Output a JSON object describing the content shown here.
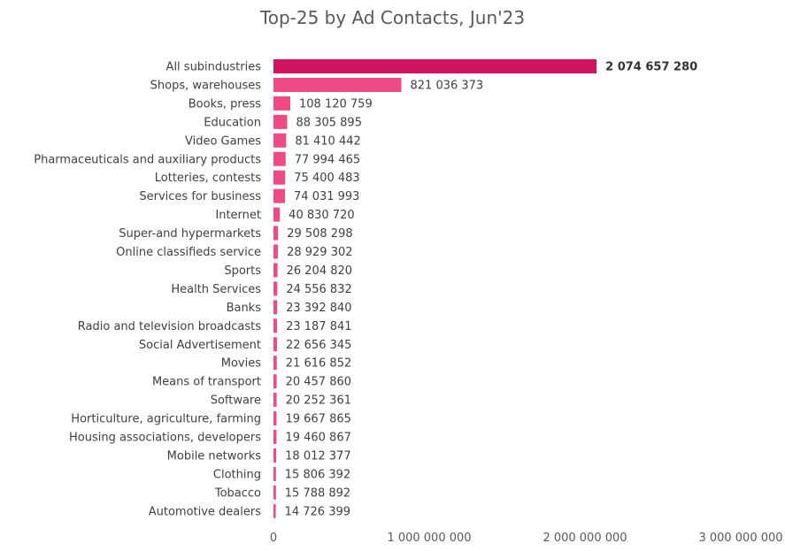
{
  "chart_data": {
    "type": "bar",
    "orientation": "horizontal",
    "title": "Top-25 by Ad Contacts, Jun'23",
    "xlim": [
      0,
      3000000000
    ],
    "x_ticks": [
      0,
      1000000000,
      2000000000,
      3000000000
    ],
    "x_tick_labels": [
      "0",
      "1 000 000 000",
      "2 000 000 000",
      "3 000 000 000"
    ],
    "grid": false,
    "colors": {
      "total": "#d0135f",
      "bar": "#ee4a86"
    },
    "categories": [
      "All subindustries",
      "Shops, warehouses",
      "Books, press",
      "Education",
      "Video Games",
      "Pharmaceuticals and auxiliary products",
      "Lotteries, contests",
      "Services for business",
      "Internet",
      "Super-and hypermarkets",
      "Online classifieds service",
      "Sports",
      "Health Services",
      "Banks",
      "Radio and television broadcasts",
      "Social Advertisement",
      "Movies",
      "Means of transport",
      "Software",
      "Horticulture, agriculture, farming",
      "Housing associations, developers",
      "Mobile networks",
      "Clothing",
      "Tobacco",
      "Automotive dealers"
    ],
    "values": [
      2074657280,
      821036373,
      108120759,
      88305895,
      81410442,
      77994465,
      75400483,
      74031993,
      40830720,
      29508298,
      28929302,
      26204820,
      24556832,
      23392840,
      23187841,
      22656345,
      21616852,
      20457860,
      20252361,
      19667865,
      19460867,
      18012377,
      15806392,
      15788892,
      14726399
    ],
    "value_labels": [
      "2 074 657 280",
      "821 036 373",
      "108 120 759",
      "88 305 895",
      "81 410 442",
      "77 994 465",
      "75 400 483",
      "74 031 993",
      "40 830 720",
      "29 508 298",
      "28 929 302",
      "26 204 820",
      "24 556 832",
      "23 392 840",
      "23 187 841",
      "22 656 345",
      "21 616 852",
      "20 457 860",
      "20 252 361",
      "19 667 865",
      "19 460 867",
      "18 012 377",
      "15 806 392",
      "15 788 892",
      "14 726 399"
    ]
  }
}
